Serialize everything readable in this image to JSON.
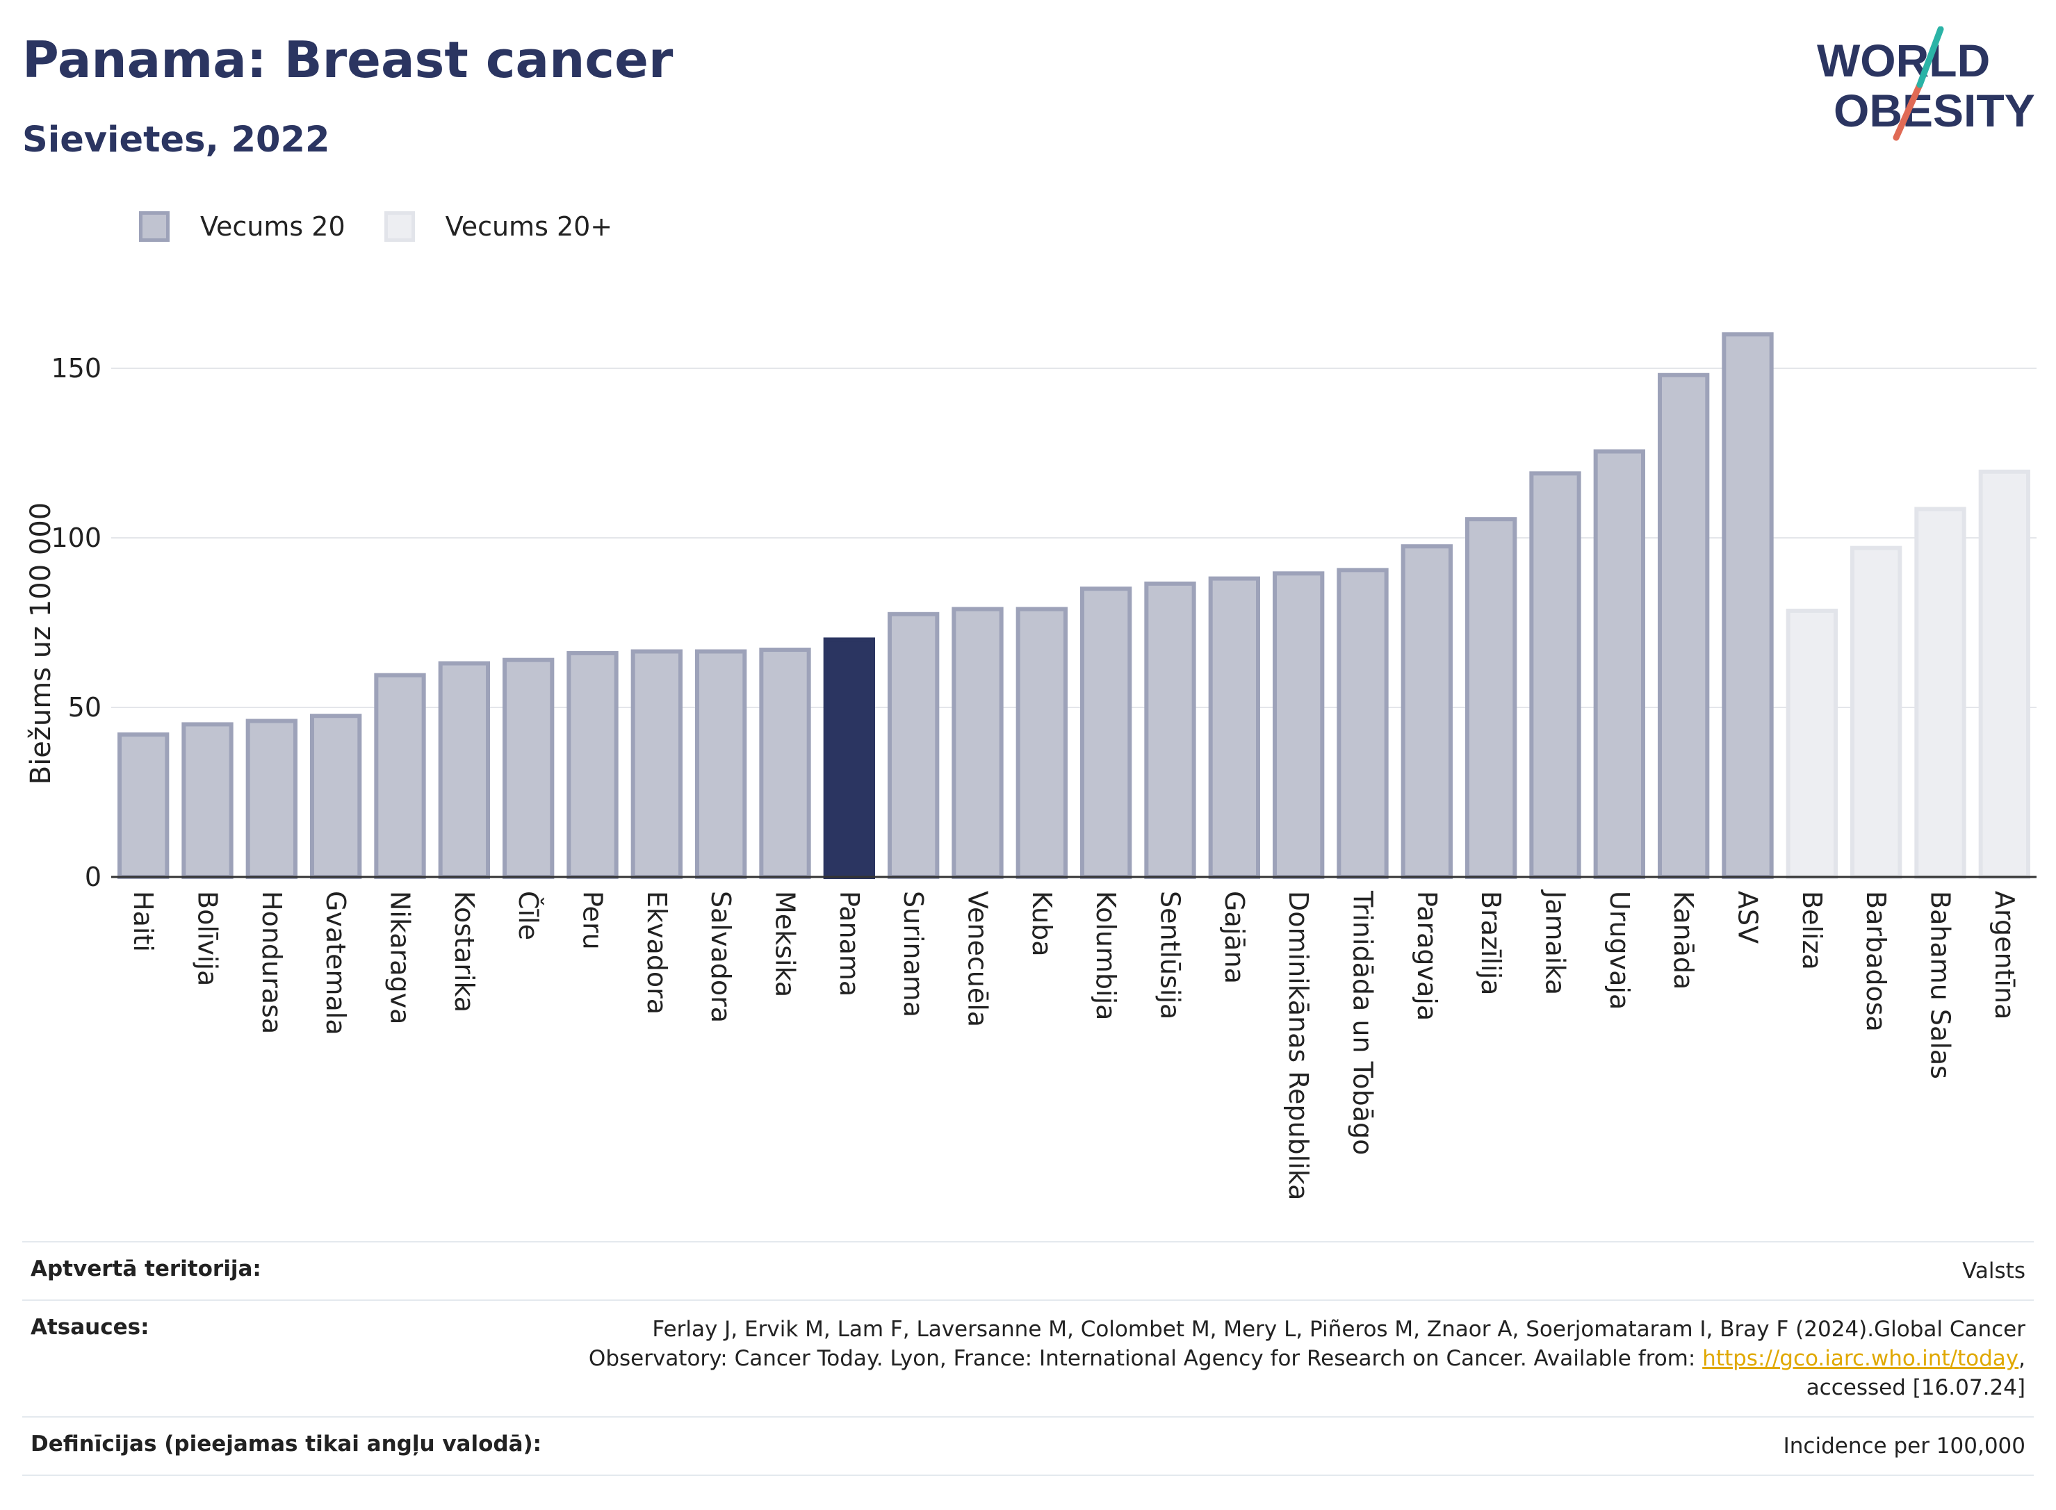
{
  "header": {
    "title": "Panama: Breast cancer",
    "subtitle": "Sievietes, 2022"
  },
  "logo": {
    "line1": "WORLD",
    "line2": "OBESITY"
  },
  "legend": [
    "Vecums 20",
    "Vecums 20+"
  ],
  "colors": {
    "age20_fill": "#c0c3d0",
    "age20_stroke": "#9da2b9",
    "age20plus_fill": "#edeef2",
    "age20plus_stroke": "#e2e4ea",
    "highlight": "#2b3561"
  },
  "chart_data": {
    "type": "bar",
    "ylabel": "Biežums uz 100 000",
    "ylim": [
      0,
      170
    ],
    "yticks": [
      0,
      50,
      100,
      150
    ],
    "grid": true,
    "legend_position": "top-left",
    "highlight": "Panama",
    "categories": [
      "Haiti",
      "Bolīvija",
      "Hondurasa",
      "Gvatemala",
      "Nikaragva",
      "Kostarika",
      "Čīle",
      "Peru",
      "Ekvadora",
      "Salvadora",
      "Meksika",
      "Panama",
      "Surinama",
      "Venecuēla",
      "Kuba",
      "Kolumbija",
      "Sentlūsija",
      "Gajāna",
      "Dominikānas Republika",
      "Trinidāda un Tobāgo",
      "Paragvaja",
      "Brazīlija",
      "Jamaika",
      "Urugvaja",
      "Kanāda",
      "ASV",
      "Beliza",
      "Barbadosa",
      "Bahamu Salas",
      "Argentīna"
    ],
    "values": [
      42,
      45,
      46,
      47.5,
      59.5,
      63,
      64,
      66,
      66.5,
      66.5,
      67,
      70,
      77.5,
      79,
      79,
      85,
      86.5,
      88,
      89.5,
      90.5,
      97.5,
      105.5,
      119,
      125.5,
      148,
      160,
      78.5,
      97,
      108.5,
      119.5
    ],
    "series": [
      "Vecums 20",
      "Vecums 20",
      "Vecums 20",
      "Vecums 20",
      "Vecums 20",
      "Vecums 20",
      "Vecums 20",
      "Vecums 20",
      "Vecums 20",
      "Vecums 20",
      "Vecums 20",
      "Vecums 20",
      "Vecums 20",
      "Vecums 20",
      "Vecums 20",
      "Vecums 20",
      "Vecums 20",
      "Vecums 20",
      "Vecums 20",
      "Vecums 20",
      "Vecums 20",
      "Vecums 20",
      "Vecums 20",
      "Vecums 20",
      "Vecums 20",
      "Vecums 20",
      "Vecums 20+",
      "Vecums 20+",
      "Vecums 20+",
      "Vecums 20+"
    ]
  },
  "footer": {
    "territory_label": "Aptvertā teritorija:",
    "territory_value": "Valsts",
    "refs_label": "Atsauces:",
    "refs_text1": "Ferlay J, Ervik M, Lam F, Laversanne M, Colombet M, Mery L, Piñeros M, Znaor A, Soerjomataram I, Bray F (2024).Global Cancer Observatory: Cancer Today. Lyon, France: International Agency for Research on Cancer. Available from: ",
    "refs_link": "https://gco.iarc.who.int/today",
    "refs_text2": ", accessed [16.07.24]",
    "defs_label": "Definīcijas (pieejamas tikai angļu valodā):",
    "defs_value": "Incidence per 100,000"
  }
}
